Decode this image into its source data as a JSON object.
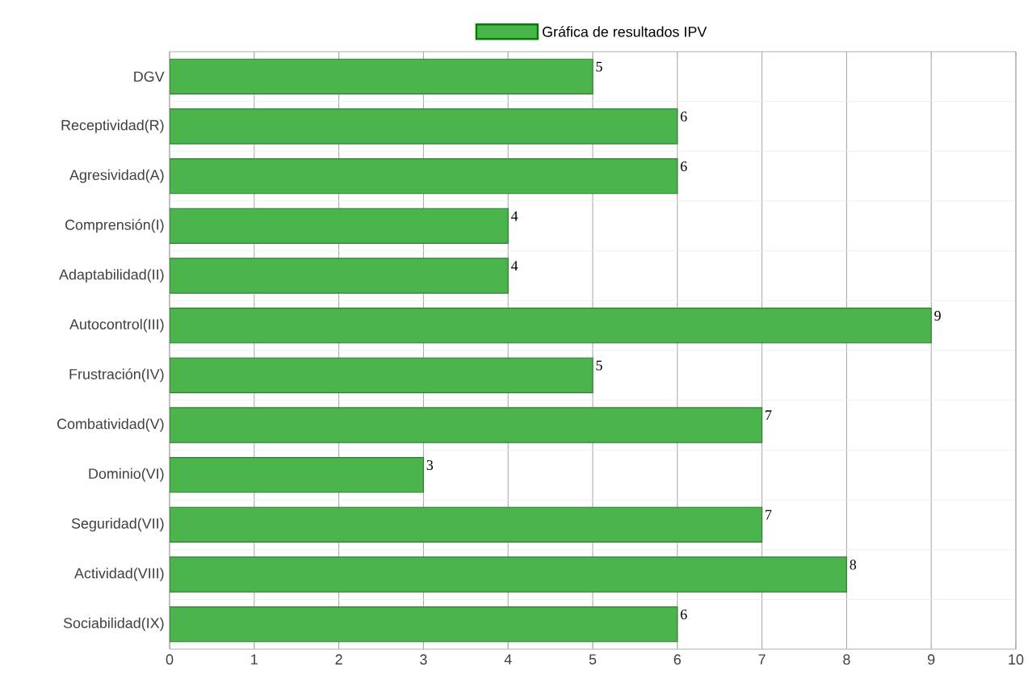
{
  "chart_data": {
    "type": "bar",
    "orientation": "horizontal",
    "categories": [
      "DGV",
      "Receptividad(R)",
      "Agresividad(A)",
      "Comprensión(I)",
      "Adaptabilidad(II)",
      "Autocontrol(III)",
      "Frustración(IV)",
      "Combatividad(V)",
      "Dominio(VI)",
      "Seguridad(VII)",
      "Actividad(VIII)",
      "Sociabilidad(IX)"
    ],
    "series": [
      {
        "name": "Gráfica de resultados IPV",
        "color": "#4cb44c",
        "values": [
          5,
          6,
          6,
          4,
          4,
          9,
          5,
          7,
          3,
          7,
          8,
          6
        ]
      }
    ],
    "xlim": [
      0,
      10
    ],
    "xticks": [
      0,
      1,
      2,
      3,
      4,
      5,
      6,
      7,
      8,
      9,
      10
    ],
    "grid": true,
    "legend": "top",
    "data_labels": true
  }
}
